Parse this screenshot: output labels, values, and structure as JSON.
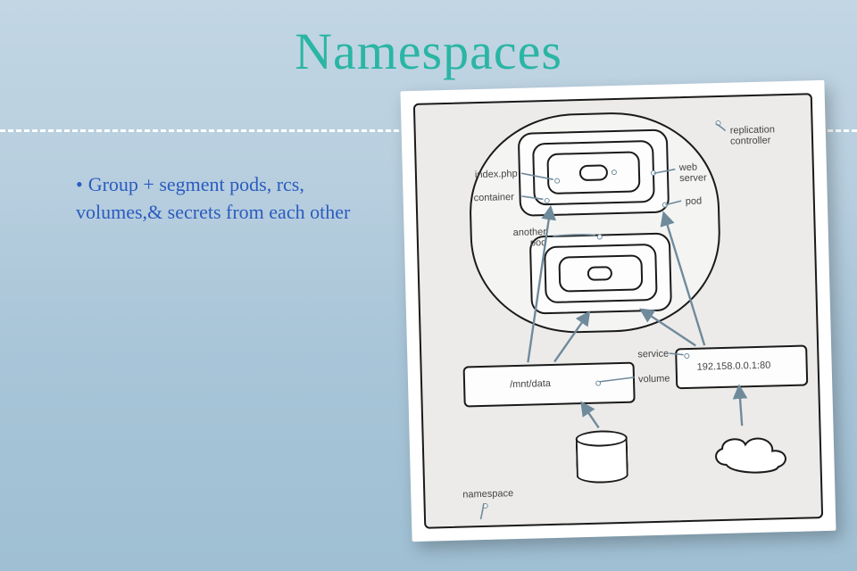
{
  "title": "Namespaces",
  "bullet": "Group + segment pods, rcs, volumes,& secrets from each other",
  "colors": {
    "title": "#2ab5a4",
    "bullet": "#2b5bbf",
    "dash": "#ffffff",
    "card_bg": "#ffffff",
    "panel_bg": "#ecebe9",
    "stroke": "#1a1a1a",
    "wire": "#6f8a9b",
    "label": "#444444"
  },
  "diagram": {
    "labels": {
      "replication_controller": "replication\ncontroller",
      "index_php": "index.php",
      "web_server": "web\nserver",
      "container": "container",
      "pod": "pod",
      "another_pod": "another\npod",
      "service": "service",
      "volume": "volume",
      "mnt_data": "/mnt/data",
      "ip": "192.158.0.0.1:80",
      "namespace": "namespace"
    }
  }
}
